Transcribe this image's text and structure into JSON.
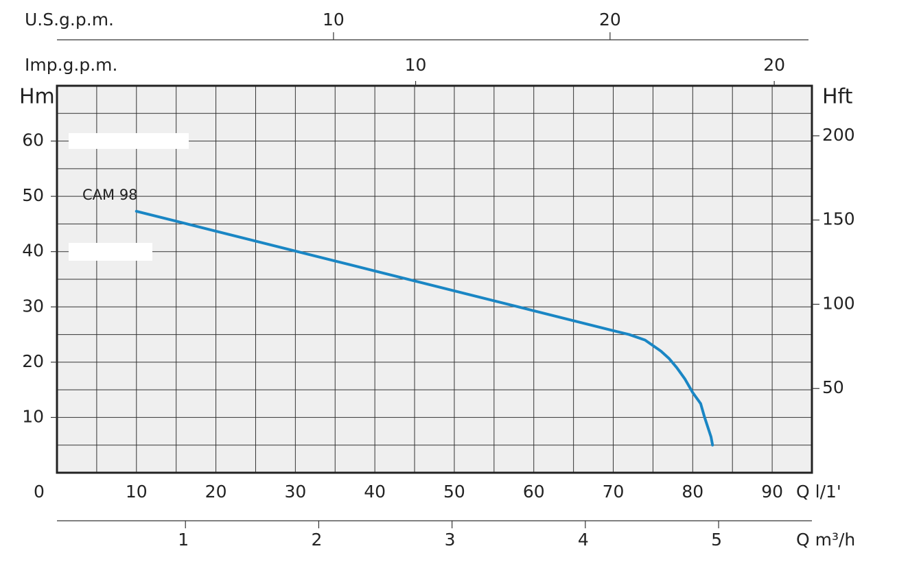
{
  "chart_data": {
    "type": "line",
    "xlabel": "Q l/1'",
    "ylabel": "Hm",
    "y2label": "Hft",
    "xlim": [
      0,
      95
    ],
    "xticks": [
      0,
      10,
      20,
      30,
      40,
      50,
      60,
      70,
      80,
      90
    ],
    "xgrid": [
      5,
      10,
      15,
      20,
      25,
      30,
      35,
      40,
      45,
      50,
      55,
      60,
      65,
      70,
      75,
      80,
      85,
      90
    ],
    "ylim": [
      0,
      70
    ],
    "yticks": [
      10,
      20,
      30,
      40,
      50,
      60
    ],
    "ygrid": [
      5,
      10,
      15,
      20,
      25,
      30,
      35,
      40,
      45,
      50,
      55,
      60,
      65
    ],
    "y2lim": [
      0,
      229.7
    ],
    "y2ticks": [
      50,
      100,
      150,
      200
    ],
    "top_axes": [
      {
        "label": "U.S.g.p.m.",
        "lim": [
          0,
          27.3
        ],
        "ticks": [
          10,
          20
        ]
      },
      {
        "label": "Imp.g.p.m.",
        "lim": [
          0,
          21.05
        ],
        "ticks": [
          10,
          20
        ]
      }
    ],
    "bottom_axis": {
      "label": "Q m³/h",
      "lim": [
        0.036,
        5.7
      ],
      "ticks": [
        1,
        2,
        3,
        4,
        5
      ]
    },
    "grid": true,
    "series": [
      {
        "name": "CAM 98",
        "color": "#1a86c4",
        "x": [
          10,
          20,
          30,
          40,
          50,
          60,
          70,
          72,
          74,
          76,
          77,
          78,
          79,
          80,
          81,
          81.5,
          82.3,
          82.5
        ],
        "values": [
          47.3,
          43.7,
          40.1,
          36.5,
          32.9,
          29.3,
          25.7,
          25.0,
          24.0,
          22.0,
          20.7,
          19.0,
          17.0,
          14.5,
          12.5,
          10.0,
          6.5,
          5.0
        ]
      }
    ]
  }
}
